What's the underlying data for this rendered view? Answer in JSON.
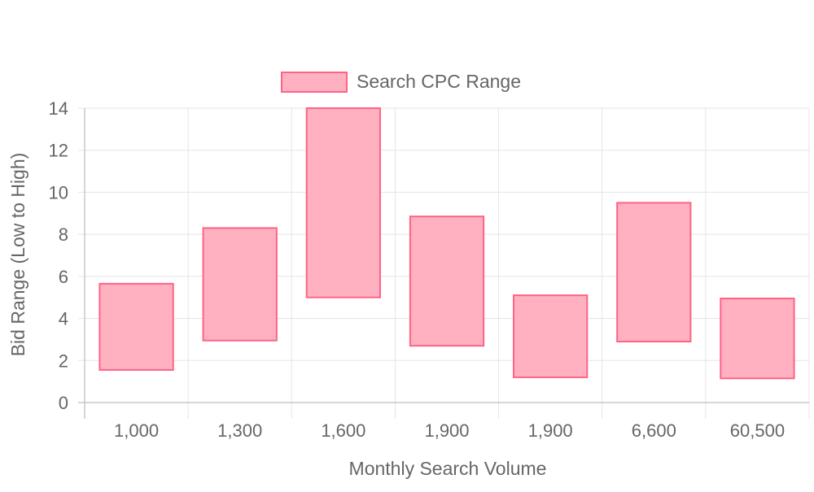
{
  "chart_data": {
    "type": "bar",
    "title": "",
    "legend": {
      "label": "Search CPC Range",
      "position": "top"
    },
    "xlabel": "Monthly Search Volume",
    "ylabel": "Bid Range (Low to High)",
    "ylim": [
      0,
      14
    ],
    "yticks": [
      0,
      2,
      4,
      6,
      8,
      10,
      12,
      14
    ],
    "grid": true,
    "categories": [
      "1,000",
      "1,300",
      "1,600",
      "1,900",
      "1,900",
      "6,600",
      "60,500"
    ],
    "series": [
      {
        "name": "Search CPC Range",
        "ranges": [
          [
            1.55,
            5.65
          ],
          [
            2.95,
            8.3
          ],
          [
            5.0,
            14.0
          ],
          [
            2.7,
            8.85
          ],
          [
            1.2,
            5.1
          ],
          [
            2.9,
            9.5
          ],
          [
            1.15,
            4.95
          ]
        ]
      }
    ],
    "colors": {
      "fill": "#ffb1c1",
      "stroke": "#ff6384",
      "grid": "#e5e5e5",
      "axis": "#c8c8c8",
      "text": "#666666"
    }
  }
}
